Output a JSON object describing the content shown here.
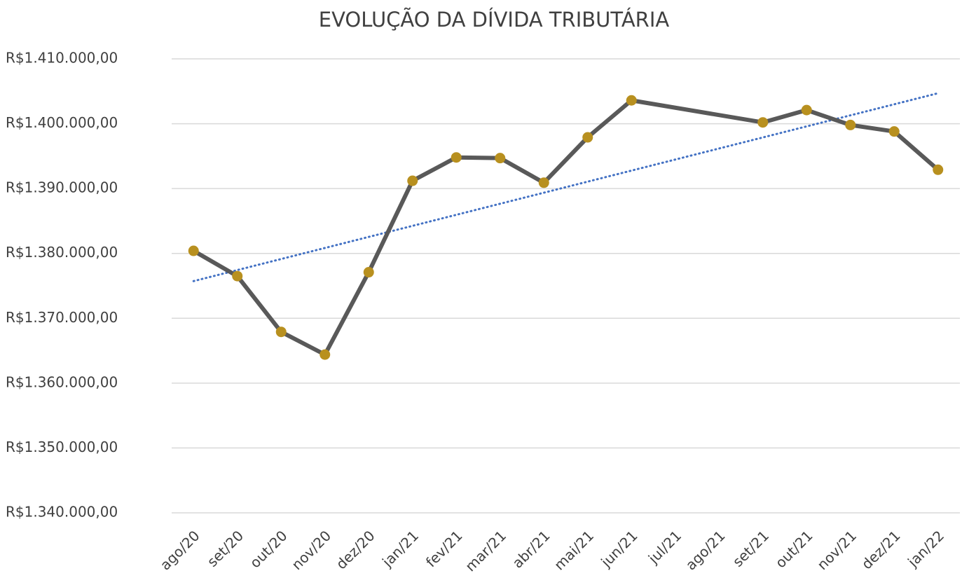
{
  "chart_data": {
    "type": "line",
    "title": "EVOLUÇÃO DA DÍVIDA TRIBUTÁRIA",
    "categories": [
      "ago/20",
      "set/20",
      "out/20",
      "nov/20",
      "dez/20",
      "jan/21",
      "fev/21",
      "mar/21",
      "abr/21",
      "mai/21",
      "jun/21",
      "jul/21",
      "ago/21",
      "set/21",
      "out/21",
      "nov/21",
      "dez/21",
      "jan/22"
    ],
    "series": [
      {
        "color": "#595959",
        "marker_color": "#b8901f",
        "span_gaps": true,
        "trendline": {
          "type": "linear",
          "color": "#4472c4"
        },
        "values": [
          1380400,
          1376500,
          1367900,
          1364400,
          1377100,
          1391200,
          1394800,
          1394700,
          1390900,
          1397900,
          1403600,
          null,
          null,
          1400200,
          1402100,
          1399800,
          1398800,
          1392900
        ]
      }
    ],
    "ylim": [
      1340000,
      1410000
    ],
    "yticks": [
      {
        "value": 1340000,
        "label": "R$1.340.000,00"
      },
      {
        "value": 1350000,
        "label": "R$1.350.000,00"
      },
      {
        "value": 1360000,
        "label": "R$1.360.000,00"
      },
      {
        "value": 1370000,
        "label": "R$1.370.000,00"
      },
      {
        "value": 1380000,
        "label": "R$1.380.000,00"
      },
      {
        "value": 1390000,
        "label": "R$1.390.000,00"
      },
      {
        "value": 1400000,
        "label": "R$1.400.000,00"
      },
      {
        "value": 1410000,
        "label": "R$1.410.000,00"
      }
    ],
    "grid": true
  }
}
